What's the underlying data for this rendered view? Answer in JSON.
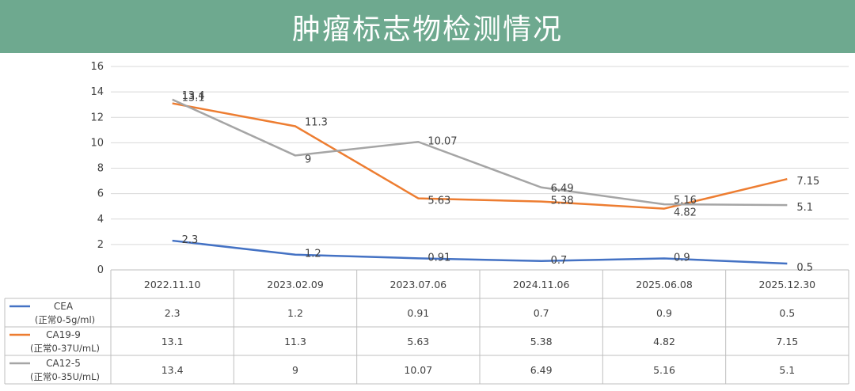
{
  "header": {
    "title": "肿瘤标志物检测情况"
  },
  "colors": {
    "header_bg": "#6ea98f",
    "cea": "#4472c4",
    "ca199": "#ed7d31",
    "ca125": "#a5a5a5",
    "grid": "#d9d9d9",
    "text": "#404040"
  },
  "chart_data": {
    "type": "line",
    "title": "",
    "xlabel": "",
    "ylabel": "",
    "ylim": [
      0,
      16
    ],
    "yticks": [
      0,
      2,
      4,
      6,
      8,
      10,
      12,
      14,
      16
    ],
    "grid": true,
    "legend": "data-table-left",
    "categories": [
      "2022.11.10",
      "2023.02.09",
      "2023.07.06",
      "2024.11.06",
      "2025.06.08",
      "2025.12.30"
    ],
    "series": [
      {
        "name": "CEA",
        "range": "(正常0-5g/ml)",
        "color": "#4472c4",
        "values": [
          2.3,
          1.2,
          0.91,
          0.7,
          0.9,
          0.5
        ],
        "labels": [
          "2.3",
          "1.2",
          "0.91",
          "0.7",
          "0.9",
          "0.5"
        ]
      },
      {
        "name": "CA19-9",
        "range": "(正常0-37U/mL)",
        "color": "#ed7d31",
        "values": [
          13.1,
          11.3,
          5.63,
          5.38,
          4.82,
          7.15
        ],
        "labels": [
          "13.1",
          "11.3",
          "5.63",
          "5.38",
          "4.82",
          "7.15"
        ]
      },
      {
        "name": "CA12-5",
        "range": "(正常0-35U/mL)",
        "color": "#a5a5a5",
        "values": [
          13.4,
          9,
          10.07,
          6.49,
          5.16,
          5.1
        ],
        "labels": [
          "13.4",
          "9",
          "10.07",
          "6.49",
          "5.16",
          "5.1"
        ]
      }
    ]
  }
}
